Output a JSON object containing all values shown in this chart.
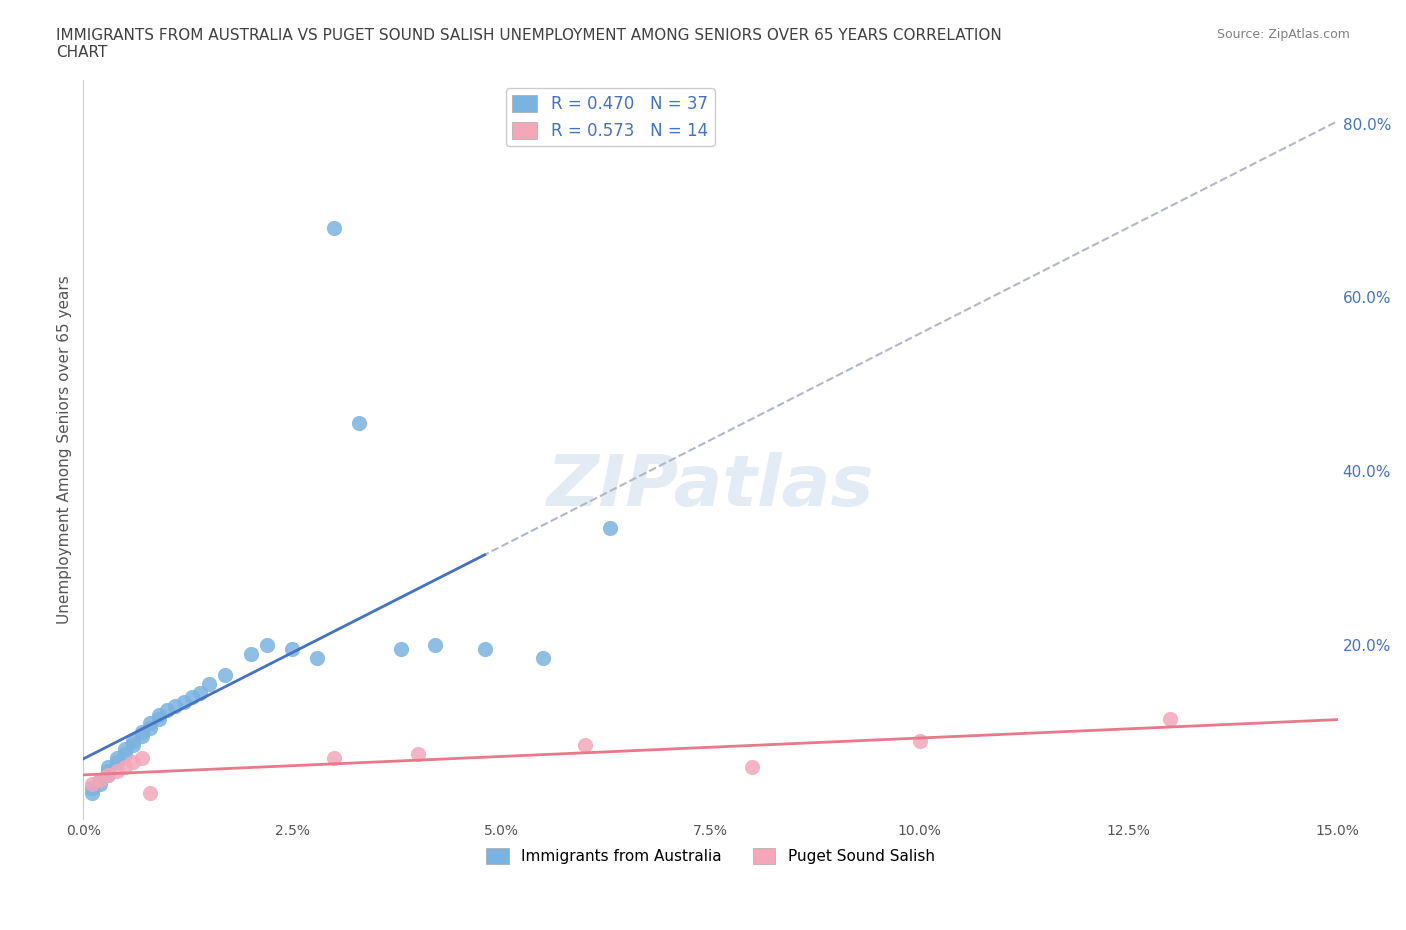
{
  "title": "IMMIGRANTS FROM AUSTRALIA VS PUGET SOUND SALISH UNEMPLOYMENT AMONG SENIORS OVER 65 YEARS CORRELATION\nCHART",
  "source": "Source: ZipAtlas.com",
  "ylabel": "Unemployment Among Seniors over 65 years",
  "xlim": [
    0.0,
    0.15
  ],
  "ylim": [
    0.0,
    0.85
  ],
  "right_axis_color": "#4472c4",
  "legend_r1": "R = 0.470   N = 37",
  "legend_r2": "R = 0.573   N = 14",
  "watermark": "ZIPatlas",
  "blue_x": [
    0.001,
    0.001,
    0.002,
    0.002,
    0.003,
    0.003,
    0.003,
    0.004,
    0.004,
    0.005,
    0.005,
    0.006,
    0.006,
    0.007,
    0.007,
    0.008,
    0.008,
    0.009,
    0.009,
    0.01,
    0.011,
    0.012,
    0.013,
    0.014,
    0.015,
    0.017,
    0.02,
    0.022,
    0.025,
    0.028,
    0.03,
    0.033,
    0.038,
    0.042,
    0.048,
    0.055,
    0.063
  ],
  "blue_y": [
    0.03,
    0.035,
    0.04,
    0.045,
    0.05,
    0.055,
    0.06,
    0.065,
    0.07,
    0.075,
    0.08,
    0.085,
    0.09,
    0.095,
    0.1,
    0.105,
    0.11,
    0.115,
    0.12,
    0.125,
    0.13,
    0.135,
    0.14,
    0.145,
    0.155,
    0.165,
    0.19,
    0.2,
    0.195,
    0.185,
    0.68,
    0.455,
    0.195,
    0.2,
    0.195,
    0.185,
    0.335
  ],
  "pink_x": [
    0.001,
    0.002,
    0.003,
    0.004,
    0.005,
    0.006,
    0.007,
    0.008,
    0.03,
    0.04,
    0.06,
    0.08,
    0.1,
    0.13
  ],
  "pink_y": [
    0.04,
    0.045,
    0.05,
    0.055,
    0.06,
    0.065,
    0.07,
    0.03,
    0.07,
    0.075,
    0.085,
    0.06,
    0.09,
    0.115
  ],
  "blue_scatter_color": "#7ab3e0",
  "pink_scatter_color": "#f4a7b9",
  "blue_line_color": "#4472c4",
  "pink_line_color": "#e8788a",
  "dashed_line_color": "#b0b8c8",
  "grid_color": "#d0d8e8",
  "background_color": "#ffffff",
  "title_color": "#404040",
  "source_color": "#808080"
}
